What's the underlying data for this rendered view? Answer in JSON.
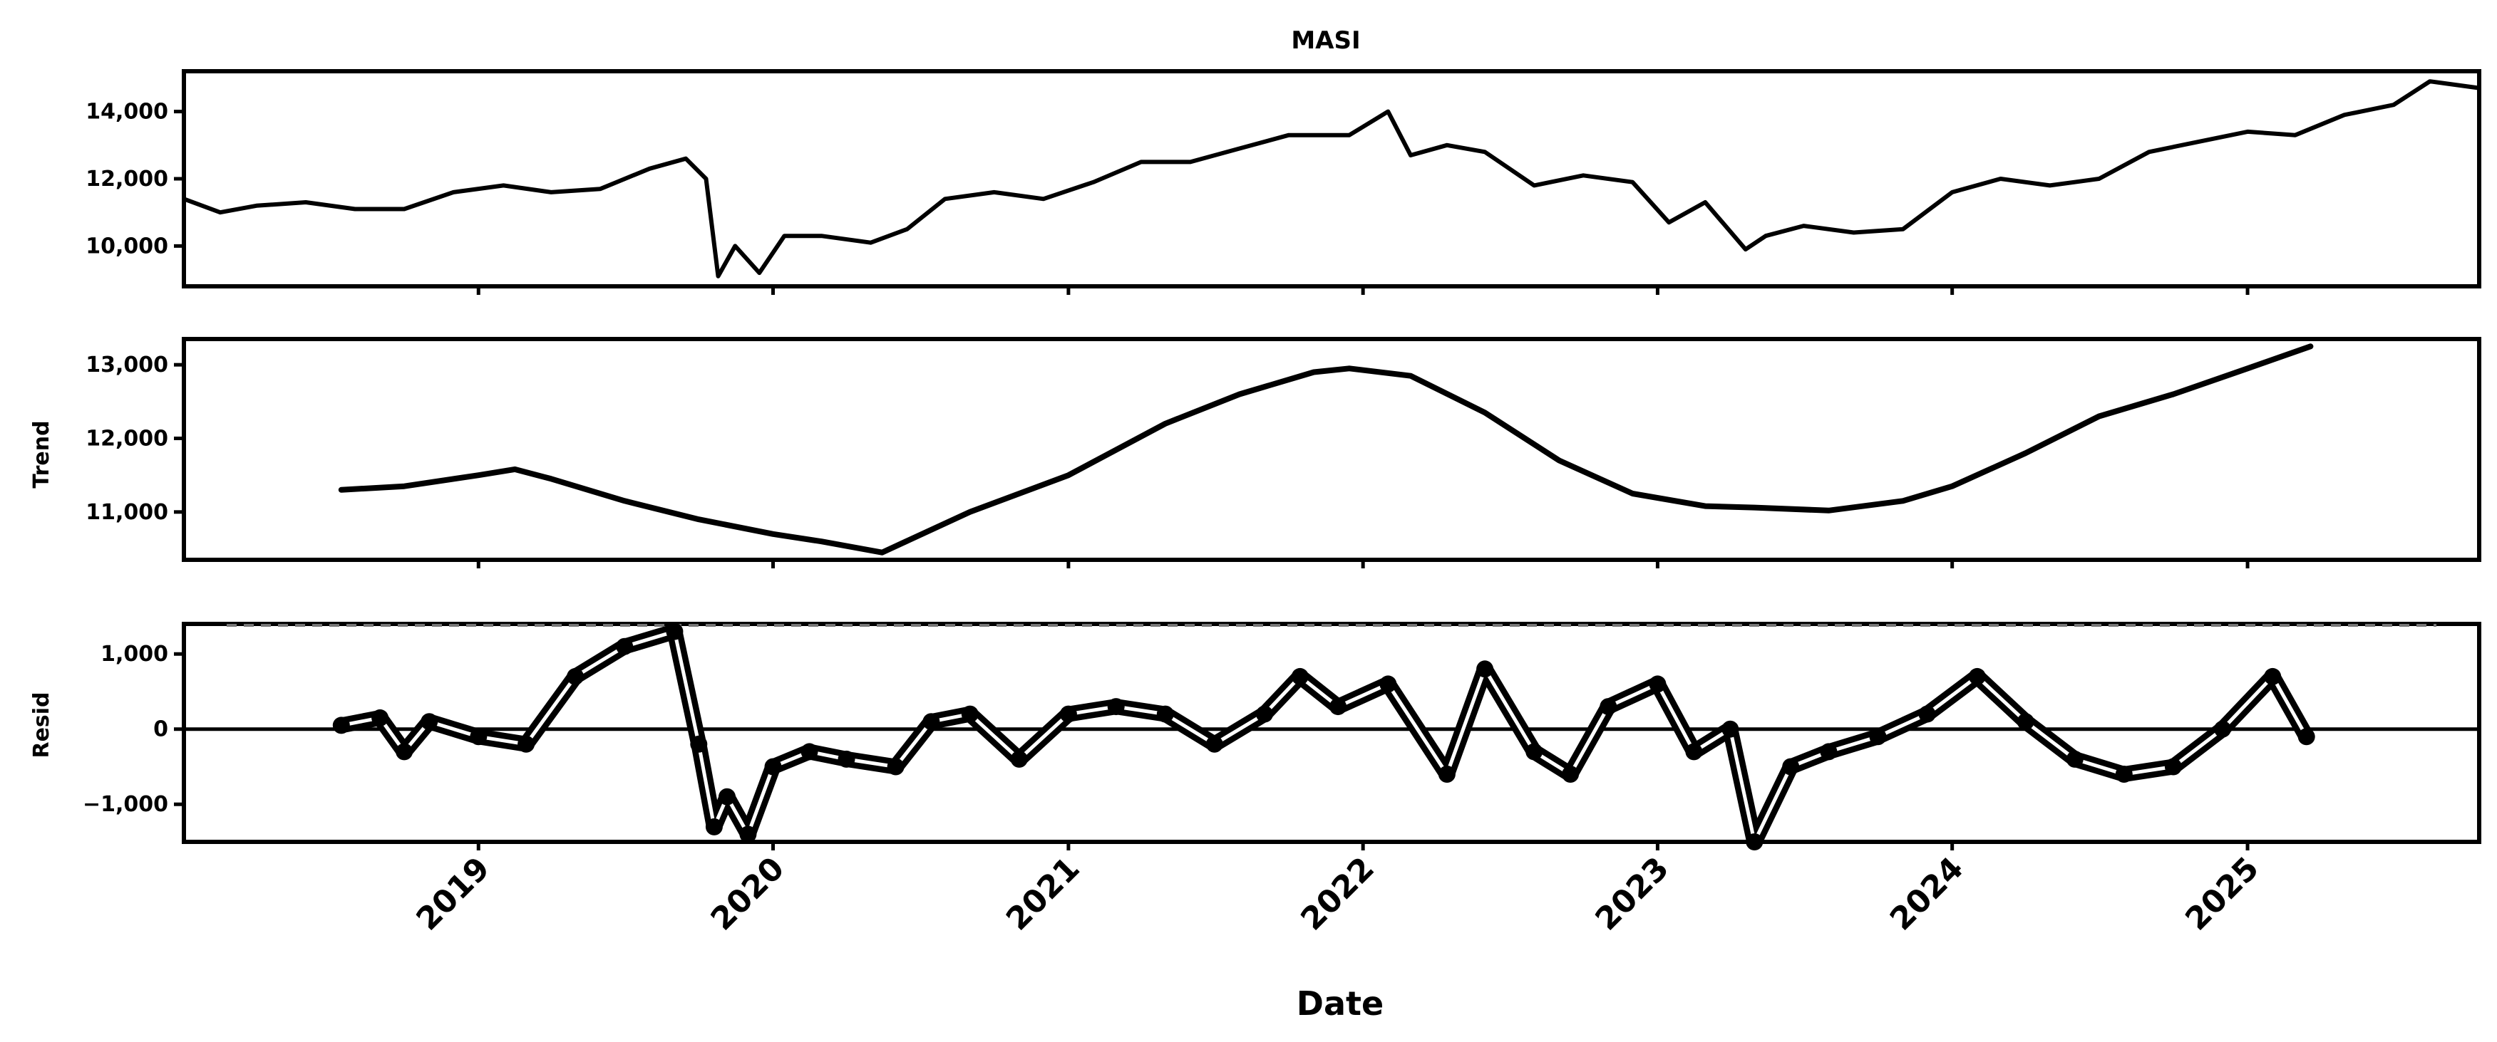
{
  "chart_data": {
    "type": "line",
    "title": "MASI",
    "xlabel": "Date",
    "x_ticks": [
      "2019",
      "2020",
      "2021",
      "2022",
      "2023",
      "2024",
      "2025"
    ],
    "x_range": [
      "2018-01-01",
      "2025-10-15"
    ],
    "grid": false,
    "legend": "none",
    "colors": {
      "line": "#000000",
      "resid_inner": "#ffffff",
      "zero_line": "#000000"
    },
    "panels": [
      {
        "id": "observed",
        "ylabel": "",
        "ylim": [
          8800,
          15200
        ],
        "yticks": [
          10000,
          12000,
          14000
        ],
        "ytick_labels": [
          "10,000",
          "12,000",
          "14,000"
        ],
        "series": [
          {
            "style": "line",
            "x": [
              "2018-01-01",
              "2018-02-15",
              "2018-04-01",
              "2018-06-01",
              "2018-08-01",
              "2018-10-01",
              "2018-12-01",
              "2019-02-01",
              "2019-04-01",
              "2019-06-01",
              "2019-08-01",
              "2019-09-15",
              "2019-10-10",
              "2019-10-25",
              "2019-11-15",
              "2019-12-15",
              "2020-01-15",
              "2020-03-01",
              "2020-05-01",
              "2020-06-15",
              "2020-08-01",
              "2020-10-01",
              "2020-12-01",
              "2021-02-01",
              "2021-04-01",
              "2021-06-01",
              "2021-08-01",
              "2021-10-01",
              "2021-12-15",
              "2022-02-01",
              "2022-03-01",
              "2022-04-15",
              "2022-06-01",
              "2022-08-01",
              "2022-10-01",
              "2022-12-01",
              "2023-01-15",
              "2023-03-01",
              "2023-04-20",
              "2023-05-15",
              "2023-07-01",
              "2023-09-01",
              "2023-11-01",
              "2024-01-01",
              "2024-03-01",
              "2024-05-01",
              "2024-07-01",
              "2024-09-01",
              "2024-11-01",
              "2025-01-01",
              "2025-03-01",
              "2025-05-01",
              "2025-07-01",
              "2025-08-15",
              "2025-10-15"
            ],
            "y": [
              11400,
              11000,
              11200,
              11300,
              11100,
              11100,
              11600,
              11800,
              11600,
              11700,
              12300,
              12600,
              12000,
              9100,
              10000,
              9200,
              10300,
              10300,
              10100,
              10500,
              11400,
              11600,
              11400,
              11900,
              12500,
              12500,
              12900,
              13300,
              13300,
              14000,
              12700,
              13000,
              12800,
              11800,
              12100,
              11900,
              10700,
              11300,
              9900,
              10300,
              10600,
              10400,
              10500,
              11600,
              12000,
              11800,
              12000,
              12800,
              13100,
              13400,
              13300,
              13900,
              14200,
              14900,
              14700
            ]
          }
        ]
      },
      {
        "id": "trend",
        "ylabel": "Trend",
        "ylim": [
          10350,
          13350
        ],
        "yticks": [
          11000,
          12000,
          13000
        ],
        "ytick_labels": [
          "11,000",
          "12,000",
          "13,000"
        ],
        "series": [
          {
            "style": "line",
            "x": [
              "2018-07-15",
              "2018-10-01",
              "2019-01-01",
              "2019-02-15",
              "2019-04-01",
              "2019-07-01",
              "2019-10-01",
              "2020-01-01",
              "2020-03-01",
              "2020-05-15",
              "2020-09-01",
              "2021-01-01",
              "2021-05-01",
              "2021-08-01",
              "2021-11-01",
              "2021-12-15",
              "2022-03-01",
              "2022-06-01",
              "2022-09-01",
              "2022-12-01",
              "2023-03-01",
              "2023-05-01",
              "2023-08-01",
              "2023-11-01",
              "2024-01-01",
              "2024-04-01",
              "2024-07-01",
              "2024-10-01",
              "2025-01-01",
              "2025-03-20"
            ],
            "y": [
              11300,
              11350,
              11500,
              11580,
              11450,
              11150,
              10900,
              10700,
              10600,
              10450,
              11000,
              11500,
              12200,
              12600,
              12900,
              12950,
              12850,
              12350,
              11700,
              11250,
              11080,
              11060,
              11020,
              11150,
              11350,
              11800,
              12300,
              12600,
              12950,
              13250
            ]
          }
        ]
      },
      {
        "id": "resid",
        "ylabel": "Resid",
        "ylim": [
          -1500,
          1400
        ],
        "yticks": [
          -1000,
          0,
          1000
        ],
        "ytick_labels": [
          "−1,000",
          "0",
          "1,000"
        ],
        "zero_line": 0,
        "series": [
          {
            "style": "dots",
            "x": [
              "2018-07-15",
              "2018-09-01",
              "2018-10-01",
              "2018-11-01",
              "2019-01-01",
              "2019-03-01",
              "2019-05-01",
              "2019-07-01",
              "2019-09-01",
              "2019-10-01",
              "2019-10-20",
              "2019-11-05",
              "2019-12-01",
              "2020-01-01",
              "2020-02-15",
              "2020-04-01",
              "2020-06-01",
              "2020-07-15",
              "2020-09-01",
              "2020-11-01",
              "2021-01-01",
              "2021-03-01",
              "2021-05-01",
              "2021-07-01",
              "2021-09-01",
              "2021-10-15",
              "2021-12-01",
              "2022-02-01",
              "2022-04-15",
              "2022-06-01",
              "2022-08-01",
              "2022-09-15",
              "2022-11-01",
              "2023-01-01",
              "2023-02-15",
              "2023-04-01",
              "2023-05-01",
              "2023-06-15",
              "2023-08-01",
              "2023-10-01",
              "2023-12-01",
              "2024-02-01",
              "2024-04-01",
              "2024-06-01",
              "2024-08-01",
              "2024-10-01",
              "2024-12-01",
              "2025-02-01",
              "2025-03-15"
            ],
            "y": [
              50,
              150,
              -300,
              100,
              -100,
              -200,
              700,
              1100,
              1300,
              -200,
              -1300,
              -900,
              -1400,
              -500,
              -300,
              -400,
              -500,
              100,
              200,
              -400,
              200,
              300,
              200,
              -200,
              200,
              700,
              300,
              600,
              -600,
              800,
              -300,
              -600,
              300,
              600,
              -300,
              0,
              -1500,
              -500,
              -300,
              -100,
              200,
              700,
              100,
              -400,
              -600,
              -500,
              0,
              700,
              -100
            ]
          }
        ]
      }
    ]
  }
}
